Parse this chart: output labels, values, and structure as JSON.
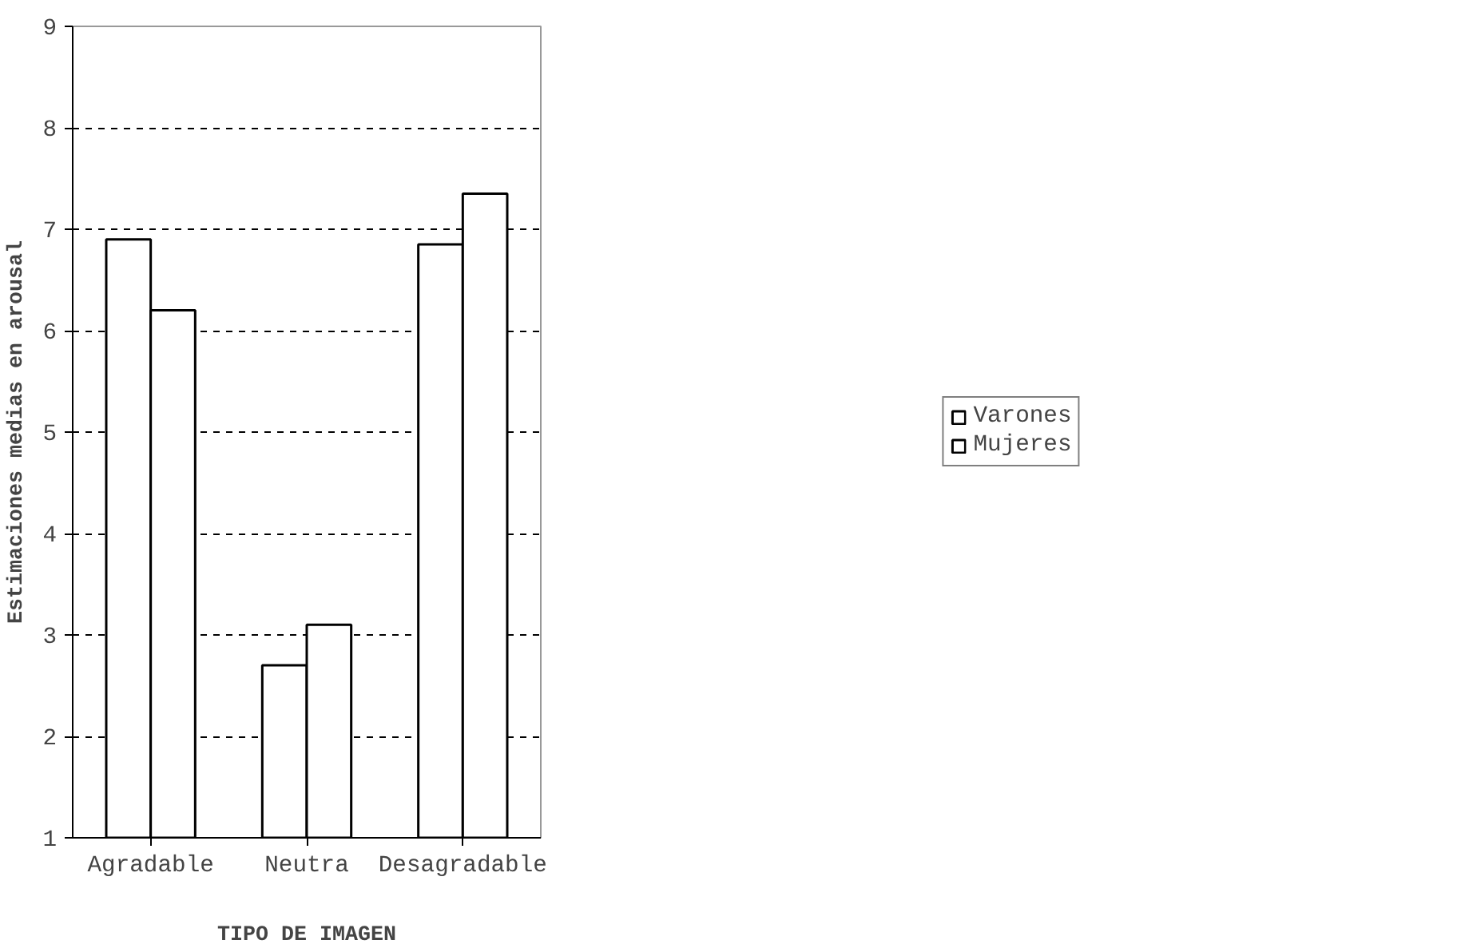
{
  "chart_data": {
    "type": "bar",
    "xlabel": "TIPO DE IMAGEN",
    "ylabel": "Estimaciones medias en arousal",
    "categories": [
      "Agradable",
      "Neutra",
      "Desagradable"
    ],
    "series": [
      {
        "name": "Varones",
        "color": "#ffffff",
        "values": [
          6.9,
          2.7,
          6.85
        ]
      },
      {
        "name": "Mujeres",
        "color": "#ffffff",
        "values": [
          6.2,
          3.1,
          7.35
        ]
      }
    ],
    "ylim": [
      1,
      9
    ],
    "yticks": [
      1,
      2,
      3,
      4,
      5,
      6,
      7,
      8,
      9
    ],
    "grid": "y",
    "legend": "right"
  }
}
